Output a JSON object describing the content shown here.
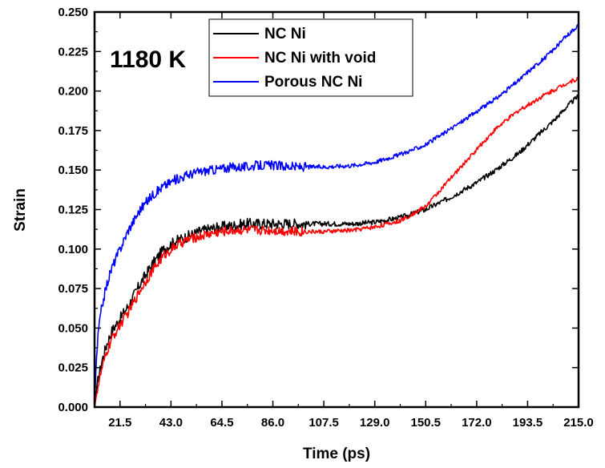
{
  "chart_data": {
    "type": "line",
    "annotation": "1180 K",
    "xlabel": "Time  (ps)",
    "ylabel": "Strain",
    "xlim": [
      10.75,
      215.0
    ],
    "ylim": [
      0.0,
      0.25
    ],
    "xticks": [
      "21.5",
      "43.0",
      "64.5",
      "86.0",
      "107.5",
      "129.0",
      "150.5",
      "172.0",
      "193.5",
      "215.0"
    ],
    "yticks": [
      "0.000",
      "0.025",
      "0.050",
      "0.075",
      "0.100",
      "0.125",
      "0.150",
      "0.175",
      "0.200",
      "0.225",
      "0.250"
    ],
    "legend_position": "top-center",
    "grid": false,
    "series": [
      {
        "name": "NC Ni",
        "color": "#000000",
        "noise": 0.0035,
        "x": [
          10.75,
          12,
          14,
          16,
          18,
          21.5,
          25,
          30,
          35,
          40,
          45,
          50,
          55,
          60,
          64.5,
          70,
          75,
          80,
          86,
          95,
          107.5,
          120,
          129,
          140,
          150.5,
          160,
          172,
          180,
          190,
          193.5,
          200,
          205,
          210,
          215
        ],
        "y": [
          0.0,
          0.015,
          0.03,
          0.04,
          0.048,
          0.056,
          0.064,
          0.078,
          0.09,
          0.1,
          0.105,
          0.108,
          0.111,
          0.113,
          0.114,
          0.115,
          0.116,
          0.116,
          0.116,
          0.116,
          0.116,
          0.116,
          0.117,
          0.12,
          0.125,
          0.132,
          0.142,
          0.15,
          0.161,
          0.166,
          0.175,
          0.182,
          0.19,
          0.197
        ]
      },
      {
        "name": "NC Ni with void",
        "color": "#ff0000",
        "noise": 0.003,
        "x": [
          10.75,
          12,
          14,
          16,
          18,
          21.5,
          25,
          30,
          35,
          40,
          45,
          50,
          55,
          60,
          64.5,
          70,
          75,
          80,
          86,
          95,
          107.5,
          120,
          129,
          140,
          150.5,
          160,
          172,
          180,
          190,
          193.5,
          200,
          205,
          210,
          215
        ],
        "y": [
          0.0,
          0.012,
          0.025,
          0.035,
          0.043,
          0.052,
          0.06,
          0.074,
          0.086,
          0.096,
          0.102,
          0.106,
          0.108,
          0.11,
          0.111,
          0.112,
          0.112,
          0.112,
          0.112,
          0.111,
          0.111,
          0.112,
          0.114,
          0.118,
          0.127,
          0.143,
          0.163,
          0.176,
          0.188,
          0.191,
          0.197,
          0.201,
          0.205,
          0.208
        ]
      },
      {
        "name": "Porous NC Ni",
        "color": "#0000ff",
        "noise": 0.003,
        "x": [
          10.75,
          11.5,
          12.5,
          14,
          16,
          18,
          21.5,
          25,
          30,
          35,
          40,
          45,
          50,
          55,
          60,
          64.5,
          70,
          75,
          80,
          86,
          95,
          107.5,
          120,
          129,
          140,
          150.5,
          160,
          172,
          180,
          190,
          193.5,
          200,
          205,
          210,
          215
        ],
        "y": [
          0.0,
          0.03,
          0.05,
          0.065,
          0.078,
          0.088,
          0.1,
          0.112,
          0.125,
          0.134,
          0.14,
          0.144,
          0.147,
          0.149,
          0.15,
          0.151,
          0.152,
          0.152,
          0.153,
          0.153,
          0.152,
          0.152,
          0.153,
          0.155,
          0.16,
          0.166,
          0.175,
          0.187,
          0.195,
          0.207,
          0.212,
          0.22,
          0.227,
          0.235,
          0.242
        ]
      }
    ]
  }
}
